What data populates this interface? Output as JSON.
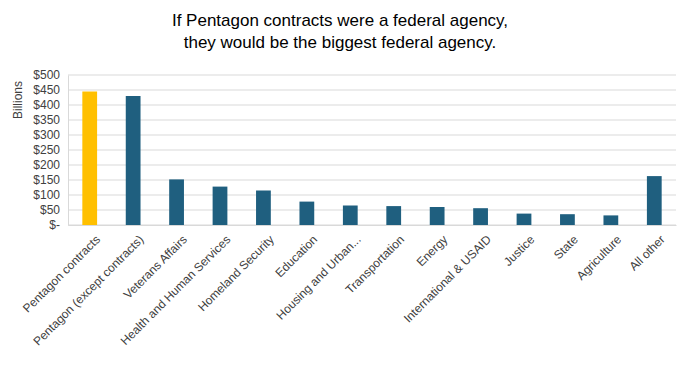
{
  "chart_data": {
    "type": "bar",
    "title": [
      "If Pentagon contracts were a federal agency,",
      "they would be the biggest federal agency."
    ],
    "y_label": "Billions",
    "categories": [
      "Pentagon contracts",
      "Pentagon (except contracts)",
      "Veterans Affairs",
      "Health and Human Services",
      "Homeland Security",
      "Education",
      "Housing and Urban...",
      "Transportation",
      "Energy",
      "International & USAID",
      "Justice",
      "State",
      "Agriculture",
      "All other"
    ],
    "values": [
      445,
      430,
      152,
      128,
      115,
      78,
      65,
      63,
      60,
      56,
      38,
      36,
      32,
      163
    ],
    "colors": [
      "#ffc000",
      "#1f5f7f",
      "#1f5f7f",
      "#1f5f7f",
      "#1f5f7f",
      "#1f5f7f",
      "#1f5f7f",
      "#1f5f7f",
      "#1f5f7f",
      "#1f5f7f",
      "#1f5f7f",
      "#1f5f7f",
      "#1f5f7f",
      "#1f5f7f"
    ],
    "ylim": [
      0,
      500
    ],
    "yticks": [
      {
        "value": 0,
        "label": "$-"
      },
      {
        "value": 50,
        "label": "$50"
      },
      {
        "value": 100,
        "label": "$100"
      },
      {
        "value": 150,
        "label": "$150"
      },
      {
        "value": 200,
        "label": "$200"
      },
      {
        "value": 250,
        "label": "$250"
      },
      {
        "value": 300,
        "label": "$300"
      },
      {
        "value": 350,
        "label": "$350"
      },
      {
        "value": 400,
        "label": "$400"
      },
      {
        "value": 450,
        "label": "$450"
      },
      {
        "value": 500,
        "label": "$500"
      }
    ],
    "grid": true
  }
}
